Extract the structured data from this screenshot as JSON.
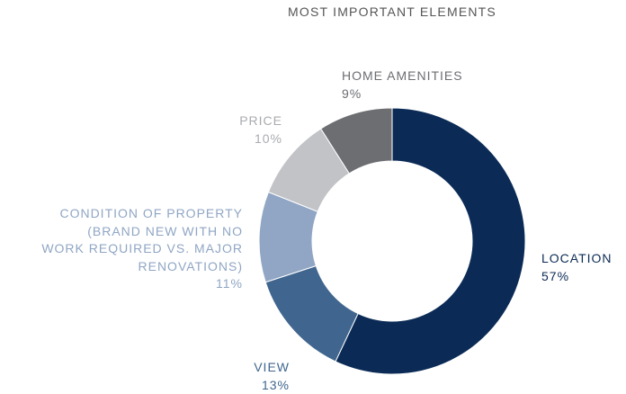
{
  "chart_data": {
    "type": "donut",
    "title": "MOST IMPORTANT ELEMENTS",
    "categories": [
      "LOCATION",
      "VIEW",
      "CONDITION OF PROPERTY\n(BRAND NEW WITH NO\nWORK REQUIRED VS. MAJOR\nRENOVATIONS)",
      "PRICE",
      "HOME AMENITIES"
    ],
    "values": [
      57,
      13,
      11,
      10,
      9
    ],
    "value_labels": [
      "57%",
      "13%",
      "11%",
      "10%",
      "9%"
    ],
    "colors": [
      "#0b2b56",
      "#40668f",
      "#90a6c4",
      "#c1c3c7",
      "#6c6e72"
    ]
  }
}
